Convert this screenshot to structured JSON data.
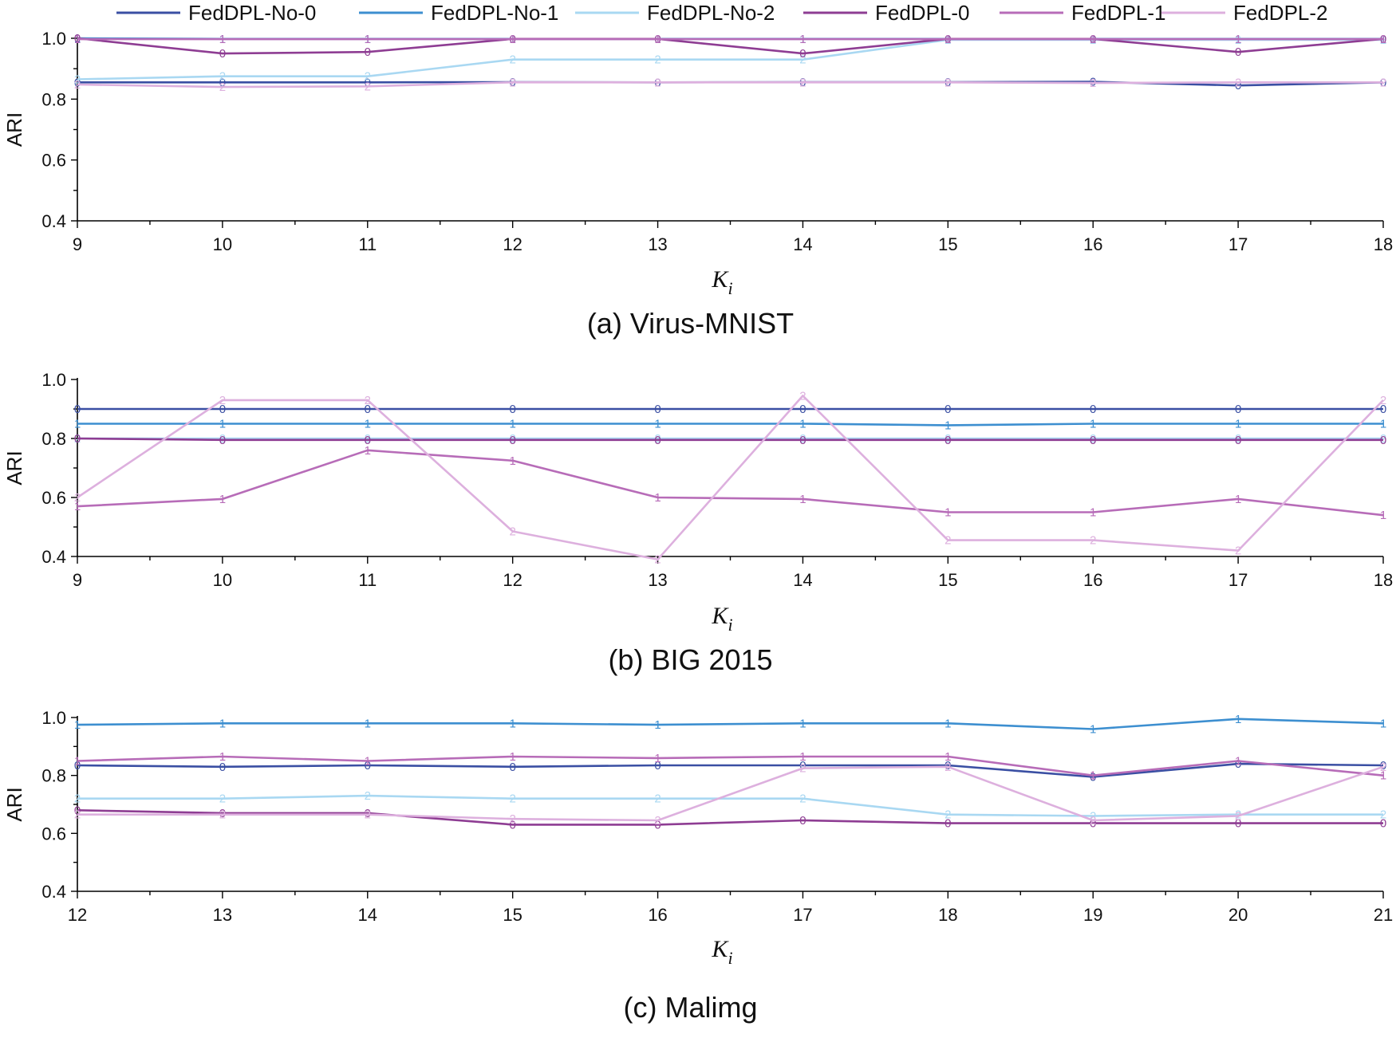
{
  "legend": [
    {
      "name": "FedDPL-No-0",
      "color": "#3a4fa3"
    },
    {
      "name": "FedDPL-No-1",
      "color": "#3d8fd0"
    },
    {
      "name": "FedDPL-No-2",
      "color": "#a9d8f2"
    },
    {
      "name": "FedDPL-0",
      "color": "#8e3d93"
    },
    {
      "name": "FedDPL-1",
      "color": "#b76cb8"
    },
    {
      "name": "FedDPL-2",
      "color": "#ddb0de"
    }
  ],
  "chart_data": [
    {
      "type": "line",
      "caption": "(a) Virus-MNIST",
      "xlabel": "K",
      "xlabel_sub": "i",
      "ylabel": "ARI",
      "x": [
        9,
        10,
        11,
        12,
        13,
        14,
        15,
        16,
        17,
        18
      ],
      "xlim": [
        9,
        18
      ],
      "ylim": [
        0.4,
        1.0
      ],
      "yticks": [
        0.4,
        0.6,
        0.8,
        1.0
      ],
      "ytick_labels": [
        "0.4",
        "0.6",
        "0.8",
        "1.0"
      ],
      "series": [
        {
          "name": "FedDPL-No-0",
          "marker": "0",
          "values": [
            0.855,
            0.855,
            0.855,
            0.856,
            0.855,
            0.856,
            0.856,
            0.857,
            0.845,
            0.855
          ]
        },
        {
          "name": "FedDPL-No-1",
          "marker": "1",
          "values": [
            1.0,
            0.998,
            0.998,
            0.998,
            0.998,
            0.998,
            0.998,
            0.998,
            0.998,
            0.998
          ]
        },
        {
          "name": "FedDPL-No-2",
          "marker": "2",
          "values": [
            0.865,
            0.875,
            0.875,
            0.93,
            0.93,
            0.93,
            0.995,
            0.995,
            0.995,
            0.995
          ]
        },
        {
          "name": "FedDPL-0",
          "marker": "0",
          "values": [
            1.0,
            0.95,
            0.955,
            0.998,
            0.998,
            0.95,
            0.998,
            0.998,
            0.955,
            0.998
          ]
        },
        {
          "name": "FedDPL-1",
          "marker": "1",
          "values": [
            0.997,
            0.997,
            0.997,
            0.997,
            0.997,
            0.997,
            0.997,
            0.997,
            0.997,
            0.997
          ]
        },
        {
          "name": "FedDPL-2",
          "marker": "2",
          "values": [
            0.848,
            0.84,
            0.842,
            0.855,
            0.855,
            0.855,
            0.855,
            0.853,
            0.855,
            0.855
          ]
        }
      ]
    },
    {
      "type": "line",
      "caption": "(b) BIG 2015",
      "xlabel": "K",
      "xlabel_sub": "i",
      "ylabel": "ARI",
      "x": [
        9,
        10,
        11,
        12,
        13,
        14,
        15,
        16,
        17,
        18
      ],
      "xlim": [
        9,
        18
      ],
      "ylim": [
        0.4,
        1.0
      ],
      "yticks": [
        0.4,
        0.6,
        0.8,
        1.0
      ],
      "ytick_labels": [
        "0.4",
        "0.6",
        "0.8",
        "1.0"
      ],
      "series": [
        {
          "name": "FedDPL-No-0",
          "marker": "0",
          "values": [
            0.9,
            0.9,
            0.9,
            0.9,
            0.9,
            0.9,
            0.9,
            0.9,
            0.9,
            0.9
          ]
        },
        {
          "name": "FedDPL-No-1",
          "marker": "1",
          "values": [
            0.85,
            0.85,
            0.85,
            0.85,
            0.85,
            0.85,
            0.845,
            0.85,
            0.85,
            0.85
          ]
        },
        {
          "name": "FedDPL-No-2",
          "marker": "2",
          "values": [
            0.8,
            0.8,
            0.8,
            0.8,
            0.8,
            0.8,
            0.8,
            0.8,
            0.8,
            0.8
          ]
        },
        {
          "name": "FedDPL-0",
          "marker": "0",
          "values": [
            0.8,
            0.795,
            0.795,
            0.795,
            0.795,
            0.795,
            0.795,
            0.795,
            0.795,
            0.795
          ]
        },
        {
          "name": "FedDPL-1",
          "marker": "1",
          "values": [
            0.57,
            0.595,
            0.76,
            0.725,
            0.6,
            0.595,
            0.55,
            0.55,
            0.595,
            0.54
          ]
        },
        {
          "name": "FedDPL-2",
          "marker": "2",
          "values": [
            0.6,
            0.93,
            0.93,
            0.485,
            0.39,
            0.945,
            0.455,
            0.455,
            0.42,
            0.93
          ]
        }
      ]
    },
    {
      "type": "line",
      "caption": "(c) Malimg",
      "xlabel": "K",
      "xlabel_sub": "i",
      "ylabel": "ARI",
      "x": [
        12,
        13,
        14,
        15,
        16,
        17,
        18,
        19,
        20,
        21
      ],
      "xlim": [
        12,
        21
      ],
      "ylim": [
        0.4,
        1.0
      ],
      "yticks": [
        0.4,
        0.6,
        0.8,
        1.0
      ],
      "ytick_labels": [
        "0.4",
        "0.6",
        "0.8",
        "1.0"
      ],
      "series": [
        {
          "name": "FedDPL-No-0",
          "marker": "0",
          "values": [
            0.835,
            0.83,
            0.835,
            0.83,
            0.835,
            0.835,
            0.835,
            0.795,
            0.84,
            0.835
          ]
        },
        {
          "name": "FedDPL-No-1",
          "marker": "1",
          "values": [
            0.975,
            0.98,
            0.98,
            0.98,
            0.975,
            0.98,
            0.98,
            0.96,
            0.995,
            0.98
          ]
        },
        {
          "name": "FedDPL-No-2",
          "marker": "2",
          "values": [
            0.72,
            0.72,
            0.73,
            0.72,
            0.72,
            0.72,
            0.665,
            0.66,
            0.665,
            0.665
          ]
        },
        {
          "name": "FedDPL-0",
          "marker": "0",
          "values": [
            0.68,
            0.67,
            0.67,
            0.63,
            0.63,
            0.645,
            0.635,
            0.635,
            0.635,
            0.635
          ]
        },
        {
          "name": "FedDPL-1",
          "marker": "1",
          "values": [
            0.85,
            0.865,
            0.85,
            0.865,
            0.86,
            0.865,
            0.865,
            0.8,
            0.85,
            0.8
          ]
        },
        {
          "name": "FedDPL-2",
          "marker": "2",
          "values": [
            0.665,
            0.665,
            0.665,
            0.65,
            0.645,
            0.825,
            0.83,
            0.645,
            0.66,
            0.83
          ]
        }
      ]
    }
  ]
}
